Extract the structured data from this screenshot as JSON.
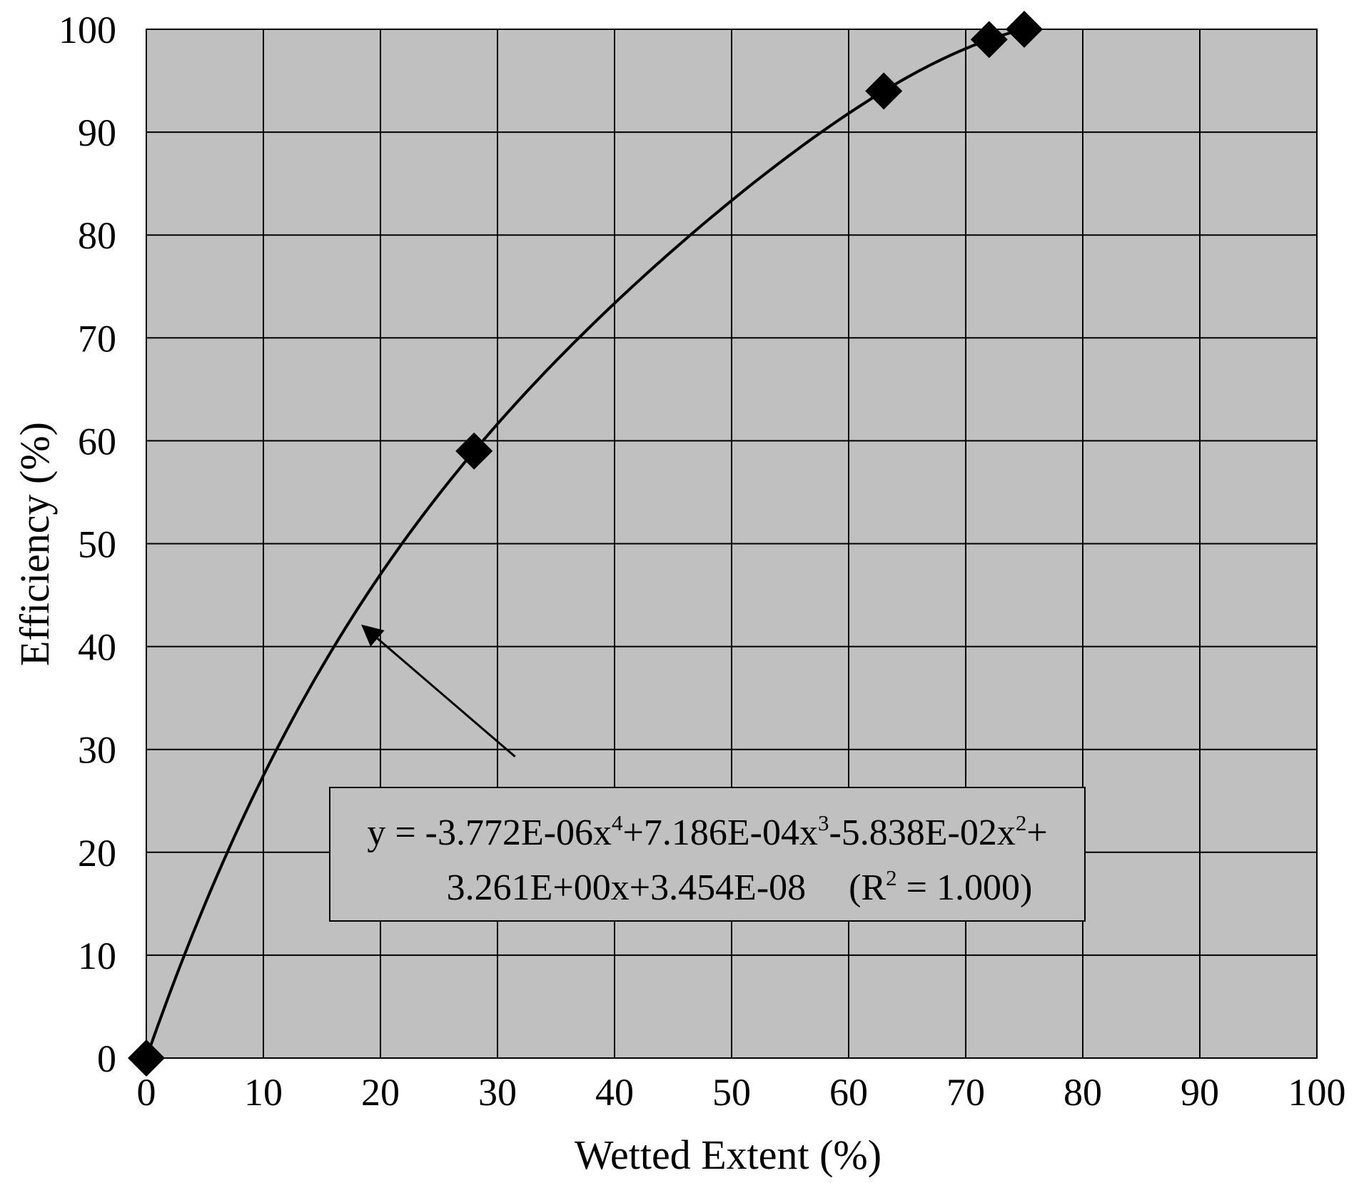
{
  "chart_data": {
    "type": "scatter",
    "xlabel": "Wetted Extent (%)",
    "ylabel": "Efficiency (%)",
    "xlim": [
      0,
      100
    ],
    "ylim": [
      0,
      100
    ],
    "x_ticks": [
      0,
      10,
      20,
      30,
      40,
      50,
      60,
      70,
      80,
      90,
      100
    ],
    "y_ticks": [
      0,
      10,
      20,
      30,
      40,
      50,
      60,
      70,
      80,
      90,
      100
    ],
    "x_tick_labels": [
      "0",
      "10",
      "20",
      "30",
      "40",
      "50",
      "60",
      "70",
      "80",
      "90",
      "100"
    ],
    "y_tick_labels": [
      "0",
      "10",
      "20",
      "30",
      "40",
      "50",
      "60",
      "70",
      "80",
      "90",
      "100"
    ],
    "grid": true,
    "plot_background": "#c0c0c0",
    "marker": "diamond",
    "marker_color": "#000000",
    "series": [
      {
        "x": [
          0,
          28,
          63,
          72,
          75
        ],
        "y": [
          0,
          59,
          94,
          99,
          100
        ]
      }
    ],
    "trendline": {
      "type": "polynomial",
      "degree": 4,
      "coefficients": [
        3.454e-08,
        3.261,
        -0.05838,
        0.0007186,
        -3.772e-06
      ],
      "x_range": [
        0,
        75
      ]
    },
    "annotation": {
      "line1": {
        "t1": "y = -3.772E-06x",
        "s1": "4",
        "t2": "+7.186E-04x",
        "s2": "3",
        "t3": "-5.838E-02x",
        "s3": "2",
        "t4": "+"
      },
      "line2": {
        "t1": "3.261E+00x+3.454E-08",
        "t2": "(R",
        "s1": "2",
        "t3": " = 1.000)"
      },
      "arrow_target": {
        "x": 18.5,
        "y": 42
      },
      "arrow_tail": {
        "x": 31.5,
        "y": 29.3
      }
    }
  }
}
